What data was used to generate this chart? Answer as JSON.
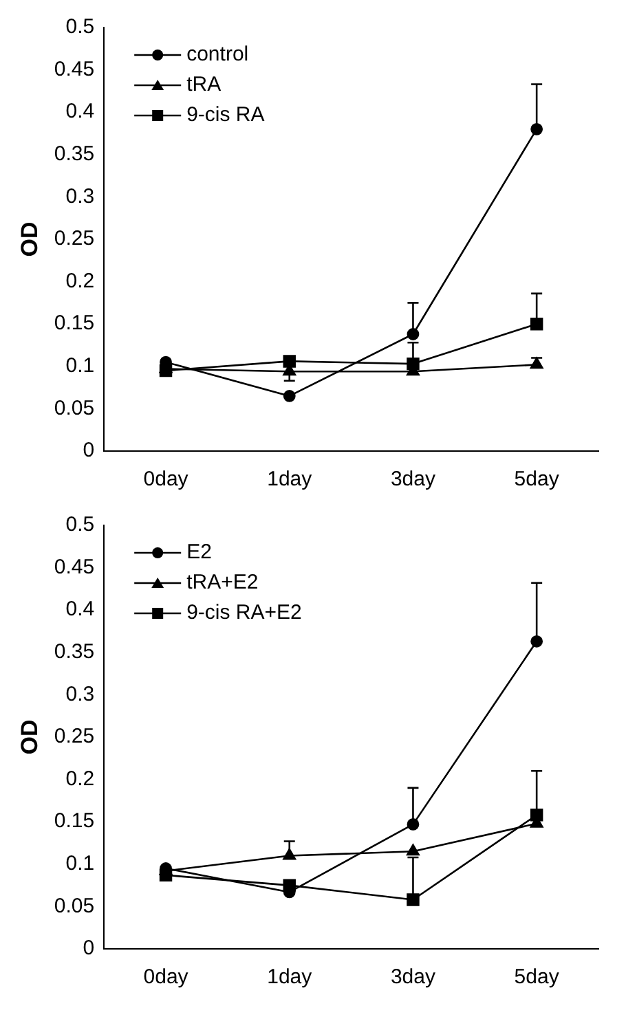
{
  "chart_data": [
    {
      "type": "line",
      "ylabel": "OD",
      "categories": [
        "0day",
        "1day",
        "3day",
        "5day"
      ],
      "ylim": [
        0,
        0.5
      ],
      "yticks": [
        0,
        0.05,
        0.1,
        0.15,
        0.2,
        0.25,
        0.3,
        0.35,
        0.4,
        0.45,
        0.5
      ],
      "grid": false,
      "legend": "top left",
      "series": [
        {
          "name": "control",
          "color": "#000000",
          "marker": "circle",
          "values": [
            0.105,
            0.065,
            0.138,
            0.38
          ],
          "errors": [
            null,
            null,
            [
              0.138,
              0.175
            ],
            [
              0.38,
              0.433
            ]
          ]
        },
        {
          "name": "tRA",
          "color": "#000000",
          "marker": "triangle",
          "values": [
            0.097,
            0.094,
            0.094,
            0.102
          ],
          "errors": [
            null,
            [
              0.083,
              0.094
            ],
            null,
            [
              0.102,
              0.11
            ]
          ]
        },
        {
          "name": "9-cis RA",
          "color": "#000000",
          "marker": "square",
          "values": [
            0.095,
            0.106,
            0.103,
            0.15
          ],
          "errors": [
            null,
            null,
            [
              0.103,
              0.128
            ],
            [
              0.15,
              0.186
            ]
          ]
        }
      ]
    },
    {
      "type": "line",
      "ylabel": "OD",
      "categories": [
        "0day",
        "1day",
        "3day",
        "5day"
      ],
      "ylim": [
        0,
        0.5
      ],
      "yticks": [
        0,
        0.05,
        0.1,
        0.15,
        0.2,
        0.25,
        0.3,
        0.35,
        0.4,
        0.45,
        0.5
      ],
      "grid": false,
      "legend": "top left",
      "series": [
        {
          "name": "E2",
          "color": "#000000",
          "marker": "circle",
          "values": [
            0.095,
            0.067,
            0.147,
            0.363
          ],
          "errors": [
            null,
            null,
            [
              0.147,
              0.19
            ],
            [
              0.363,
              0.432
            ]
          ]
        },
        {
          "name": "tRA+E2",
          "color": "#000000",
          "marker": "triangle",
          "values": [
            0.092,
            0.11,
            0.115,
            0.148
          ],
          "errors": [
            null,
            [
              0.11,
              0.127
            ],
            null,
            null
          ]
        },
        {
          "name": "9-cis RA+E2",
          "color": "#000000",
          "marker": "square",
          "values": [
            0.087,
            0.075,
            0.058,
            0.158
          ],
          "errors": [
            null,
            null,
            [
              0.058,
              0.108
            ],
            [
              0.158,
              0.21
            ]
          ]
        }
      ]
    }
  ]
}
